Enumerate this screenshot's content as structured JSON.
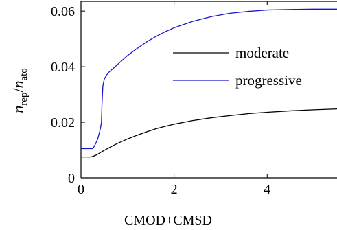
{
  "chart_data": {
    "type": "line",
    "xlabel": "CMOD+CMSD",
    "ylabel": {
      "num_var": "n",
      "num_sub": "rep",
      "slash": "/",
      "den_var": "n",
      "den_sub": "ato"
    },
    "xlim": [
      0,
      5.5
    ],
    "ylim": [
      0,
      0.0635
    ],
    "x_ticks": [
      0,
      2,
      4
    ],
    "x_tick_labels": [
      "0",
      "2",
      "4"
    ],
    "y_ticks": [
      0,
      0.02,
      0.04,
      0.06
    ],
    "y_tick_labels": [
      "0",
      "0.02",
      "0.04",
      "0.06"
    ],
    "grid": false,
    "legend_position": "top-right",
    "series": [
      {
        "name": "moderate",
        "color": "#000000",
        "x": [
          0,
          0.2,
          0.25,
          0.3,
          0.35,
          0.4,
          0.45,
          0.5,
          0.6,
          0.7,
          0.8,
          1.0,
          1.2,
          1.4,
          1.6,
          1.8,
          2.0,
          2.4,
          2.8,
          3.2,
          3.6,
          4.0,
          4.5,
          5.0,
          5.5
        ],
        "y": [
          0.0075,
          0.0075,
          0.0077,
          0.008,
          0.0084,
          0.0089,
          0.0094,
          0.0099,
          0.0108,
          0.0117,
          0.0125,
          0.014,
          0.0153,
          0.0165,
          0.0176,
          0.0185,
          0.0193,
          0.0206,
          0.0216,
          0.0224,
          0.0231,
          0.0236,
          0.0241,
          0.0245,
          0.0248
        ]
      },
      {
        "name": "progressive",
        "color": "#1515cc",
        "x": [
          0,
          0.25,
          0.28,
          0.32,
          0.36,
          0.4,
          0.42,
          0.44,
          0.45,
          0.47,
          0.5,
          0.55,
          0.6,
          0.7,
          0.8,
          1.0,
          1.2,
          1.4,
          1.6,
          1.8,
          2.0,
          2.4,
          2.8,
          3.2,
          3.6,
          4.0,
          4.5,
          5.0,
          5.5
        ],
        "y": [
          0.0105,
          0.0105,
          0.0112,
          0.0125,
          0.014,
          0.0165,
          0.018,
          0.02,
          0.026,
          0.033,
          0.0355,
          0.037,
          0.038,
          0.0395,
          0.041,
          0.044,
          0.0465,
          0.0488,
          0.0508,
          0.0525,
          0.054,
          0.0563,
          0.058,
          0.0592,
          0.0599,
          0.0604,
          0.0606,
          0.0607,
          0.0607
        ]
      }
    ]
  }
}
